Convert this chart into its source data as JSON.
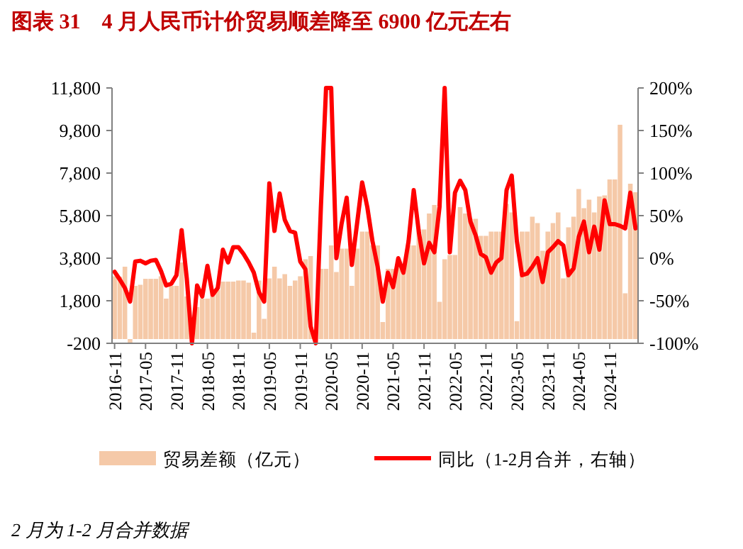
{
  "chart_data": {
    "type": "bar",
    "title": "图表 31    4 月人民币计价贸易顺差降至 6900 亿元左右",
    "annotations": [
      "2 月为 1-2 月合并数据"
    ],
    "categories": [
      "2016-11",
      null,
      null,
      null,
      null,
      null,
      "2017-05",
      null,
      null,
      null,
      null,
      null,
      "2017-11",
      null,
      null,
      null,
      null,
      null,
      "2018-05",
      null,
      null,
      null,
      null,
      null,
      "2018-11",
      null,
      null,
      null,
      null,
      null,
      "2019-05",
      null,
      null,
      null,
      null,
      null,
      "2019-11",
      null,
      null,
      null,
      null,
      null,
      "2020-05",
      null,
      null,
      null,
      null,
      null,
      "2020-11",
      null,
      null,
      null,
      null,
      null,
      "2021-05",
      null,
      null,
      null,
      null,
      null,
      "2021-11",
      null,
      null,
      null,
      null,
      null,
      "2022-05",
      null,
      null,
      null,
      null,
      null,
      "2022-11",
      null,
      null,
      null,
      null,
      null,
      "2023-05",
      null,
      null,
      null,
      null,
      null,
      "2023-11",
      null,
      null,
      null,
      null,
      null,
      "2024-05",
      null,
      null,
      null,
      null,
      null,
      "2024-11",
      null,
      null,
      null,
      null,
      null
    ],
    "series": [
      {
        "name": "贸易差额（亿元）",
        "color": "#f5c9a8",
        "values": [
          2950,
          2930,
          3400,
          -200,
          2500,
          2550,
          2830,
          2830,
          2830,
          2950,
          1900,
          2500,
          2500,
          3600,
          2000,
          null,
          1500,
          1900,
          1900,
          2300,
          2300,
          2700,
          2700,
          2700,
          2750,
          2750,
          2650,
          300,
          2750,
          950,
          2850,
          3400,
          2850,
          3050,
          2500,
          2750,
          2950,
          3750,
          3900,
          null,
          3300,
          3300,
          4400,
          3150,
          4250,
          4250,
          2500,
          4250,
          5050,
          5050,
          4400,
          4400,
          800,
          3300,
          3300,
          3400,
          3400,
          4400,
          4400,
          5150,
          5150,
          5900,
          6300,
          1750,
          3750,
          3950,
          3950,
          6200,
          5900,
          5650,
          5650,
          4850,
          4850,
          5050,
          5050,
          5050,
          6350,
          5950,
          840,
          5050,
          5050,
          5750,
          5450,
          4150,
          5050,
          5450,
          5950,
          2850,
          5250,
          5750,
          7050,
          6150,
          6550,
          5950,
          6700,
          6750,
          7500,
          7500,
          10070,
          2150,
          7300,
          6900
        ]
      },
      {
        "name": "同比（1-2月合并，右轴）",
        "type": "line",
        "axis": "y2",
        "color": "#ff0000",
        "values": [
          -16,
          -25,
          -35,
          -51,
          -4,
          -3,
          -6,
          -3,
          -2,
          -15,
          -32,
          -30,
          -20,
          33,
          -24,
          -100,
          -32,
          -45,
          -9,
          -43,
          -35,
          10,
          -5,
          13,
          13,
          5,
          -5,
          -17,
          -40,
          -51,
          88,
          32,
          76,
          45,
          32,
          30,
          -4,
          -13,
          -80,
          -100,
          60,
          200,
          200,
          0,
          40,
          71,
          -8,
          40,
          89,
          60,
          20,
          -10,
          -51,
          -17,
          -34,
          0,
          -17,
          20,
          80,
          30,
          -6,
          18,
          7,
          60,
          200,
          7,
          77,
          91,
          80,
          43,
          27,
          5,
          1,
          -17,
          -5,
          0,
          80,
          97,
          20,
          -20,
          -18,
          -10,
          0,
          -28,
          7,
          13,
          20,
          15,
          -20,
          -12,
          25,
          43,
          7,
          37,
          10,
          68,
          40,
          40,
          38,
          35,
          77,
          35
        ]
      }
    ],
    "ylim": [
      -200,
      11800
    ],
    "yticks": [
      -200,
      {
        "value": 1800,
        "label": "1,800"
      },
      {
        "value": 3800,
        "label": "3,800"
      },
      {
        "value": 5800,
        "label": "5,800"
      },
      {
        "value": 7800,
        "label": "7,800"
      },
      {
        "value": 9800,
        "label": "9,800"
      },
      {
        "value": 11800,
        "label": "11,800"
      }
    ],
    "y2lim": [
      -100,
      200
    ],
    "y2ticks": [
      {
        "value": -100,
        "label": "-100%"
      },
      {
        "value": -50,
        "label": "-50%"
      },
      {
        "value": 0,
        "label": "0%"
      },
      {
        "value": 50,
        "label": "50%"
      },
      {
        "value": 100,
        "label": "100%"
      },
      {
        "value": 150,
        "label": "150%"
      },
      {
        "value": 200,
        "label": "200%"
      }
    ],
    "legend": "bottom"
  }
}
